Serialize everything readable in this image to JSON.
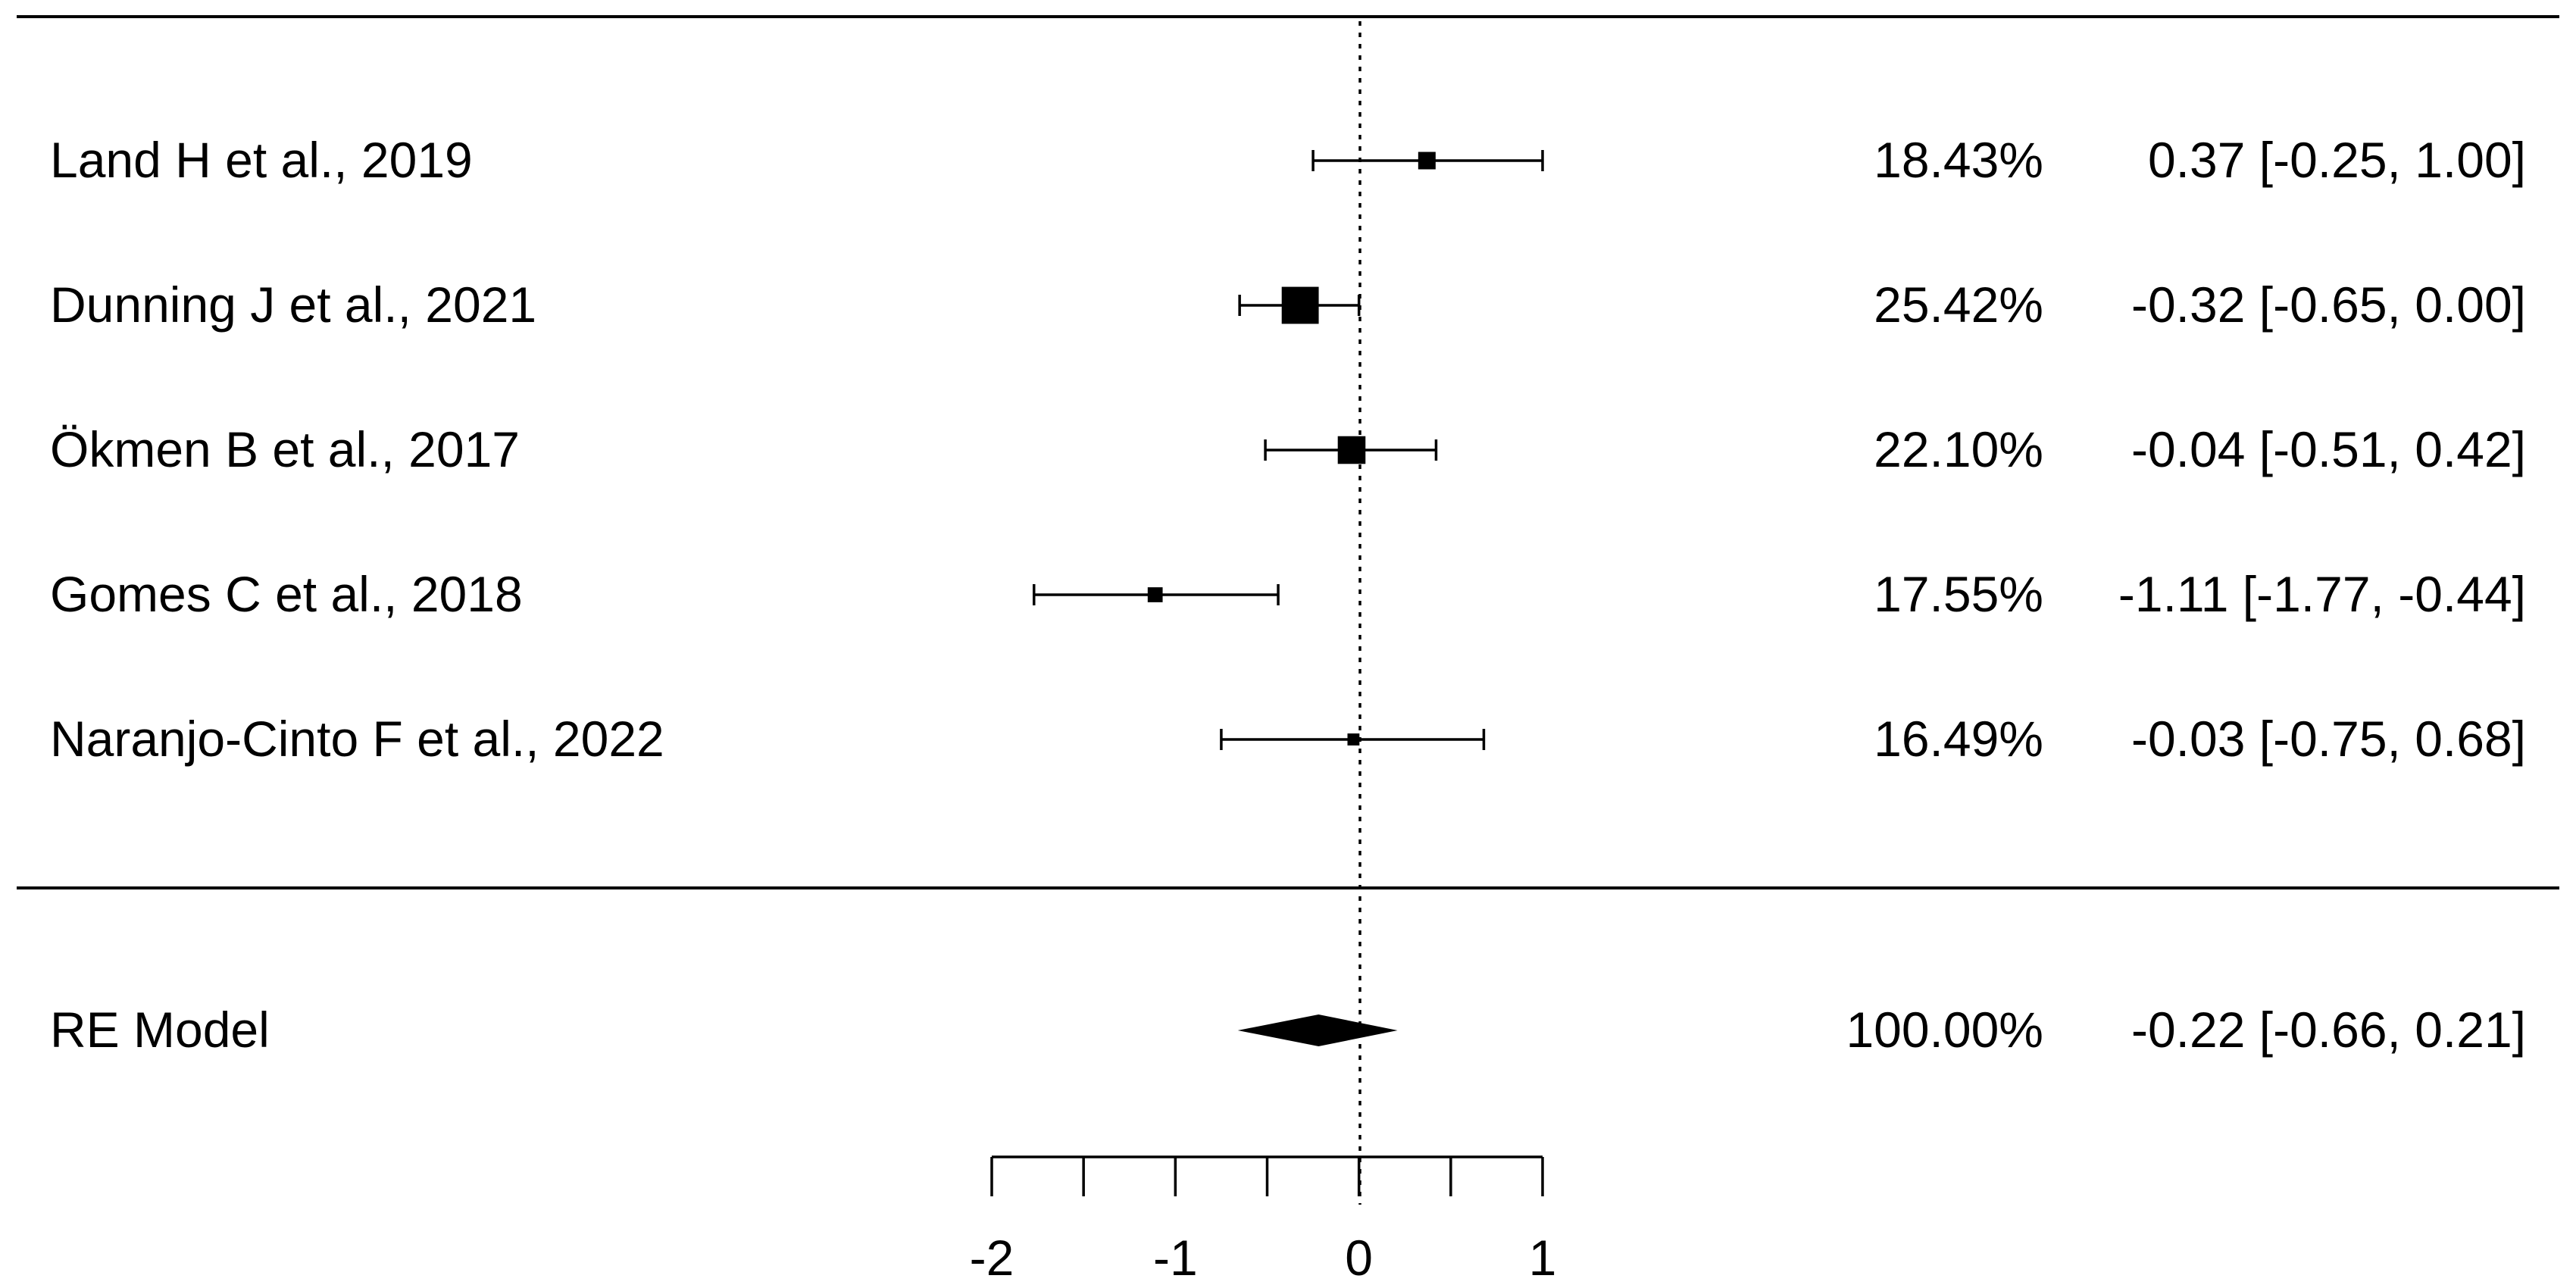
{
  "chart_data": {
    "type": "forest",
    "title": "",
    "xlabel": "",
    "xlim": [
      -2,
      1
    ],
    "x_ticks": [
      -2,
      -1.5,
      -1,
      -0.5,
      0,
      0.5,
      1
    ],
    "x_tick_labels": [
      "-2",
      "-1",
      "0",
      "1"
    ],
    "x_tick_label_values": [
      -2,
      -1,
      0,
      1
    ],
    "reference_line": 0,
    "studies": [
      {
        "label": "Land H et al., 2019",
        "weight": "18.43%",
        "estimate": 0.37,
        "ci_lower": -0.25,
        "ci_upper": 1.0,
        "ci_text": "0.37 [-0.25,  1.00]"
      },
      {
        "label": "Dunning J et al., 2021",
        "weight": "25.42%",
        "estimate": -0.32,
        "ci_lower": -0.65,
        "ci_upper": 0.0,
        "ci_text": "-0.32 [-0.65,  0.00]"
      },
      {
        "label": "Ökmen B et al., 2017",
        "weight": "22.10%",
        "estimate": -0.04,
        "ci_lower": -0.51,
        "ci_upper": 0.42,
        "ci_text": "-0.04 [-0.51,  0.42]"
      },
      {
        "label": "Gomes C et al., 2018",
        "weight": "17.55%",
        "estimate": -1.11,
        "ci_lower": -1.77,
        "ci_upper": -0.44,
        "ci_text": "-1.11 [-1.77, -0.44]"
      },
      {
        "label": "Naranjo-Cinto F et al., 2022",
        "weight": "16.49%",
        "estimate": -0.03,
        "ci_lower": -0.75,
        "ci_upper": 0.68,
        "ci_text": "-0.03 [-0.75,  0.68]"
      }
    ],
    "summary": {
      "label": "RE Model",
      "weight": "100.00%",
      "estimate": -0.22,
      "ci_lower": -0.66,
      "ci_upper": 0.21,
      "ci_text": "-0.22 [-0.66,  0.21]"
    }
  }
}
